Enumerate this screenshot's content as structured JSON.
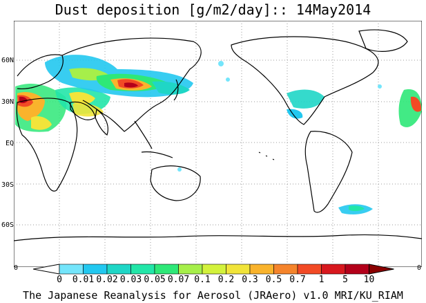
{
  "title": "Dust deposition [g/m2/day]:: 14May2014",
  "lat_labels": [
    "60N",
    "30N",
    "EQ",
    "30S",
    "60S"
  ],
  "edge_labels": {
    "left": "0",
    "right": "0"
  },
  "colorbar": {
    "labels": [
      "0",
      "0.01",
      "0.02",
      "0.03",
      "0.05",
      "0.07",
      "0.1",
      "0.2",
      "0.3",
      "0.5",
      "0.7",
      "1",
      "5",
      "10"
    ],
    "colors": [
      "#ffffff",
      "#74e5fb",
      "#22c8f0",
      "#1fd6c6",
      "#22e6a8",
      "#2ee878",
      "#a6ef4a",
      "#d3f23c",
      "#f1e43a",
      "#f9b32c",
      "#f5842b",
      "#f24a25",
      "#d8181e",
      "#b3001a",
      "#8a0000"
    ]
  },
  "footer": "The Japanese Reanalysis for Aerosol (JRAero) v1.0 MRI/KU_RIAM"
}
